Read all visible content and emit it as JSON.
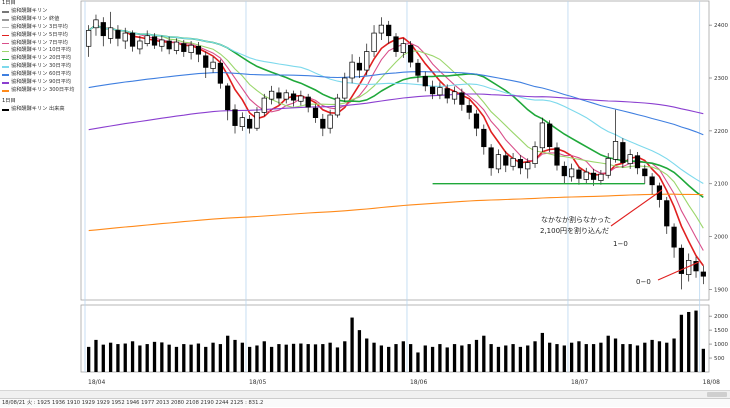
{
  "legend": {
    "price_panel_title": "1日目",
    "price_items": [
      {
        "label": "協和醗酵キリン",
        "color": "#777777"
      },
      {
        "label": "協和醗酵キリン 終値",
        "color": "#999999"
      },
      {
        "label": "協和醗酵キリン 3日平均",
        "color": "#bbbbbb"
      },
      {
        "label": "協和醗酵キリン 5日平均",
        "color": "#e02020"
      },
      {
        "label": "協和醗酵キリン 7日平均",
        "color": "#d94f8a"
      },
      {
        "label": "協和醗酵キリン 10日平均",
        "color": "#9bd66c"
      },
      {
        "label": "協和醗酵キリン 20日平均",
        "color": "#1fa83a"
      },
      {
        "label": "協和醗酵キリン 30日平均",
        "color": "#7dd9ec"
      },
      {
        "label": "協和醗酵キリン 60日平均",
        "color": "#3f7fe0"
      },
      {
        "label": "協和醗酵キリン 90日平均",
        "color": "#8b3fd0"
      },
      {
        "label": "協和醗酵キリン 300日平均",
        "color": "#ff8a1a"
      }
    ],
    "volume_panel_title": "1日目",
    "volume_items": [
      {
        "label": "協和醗酵キリン 出来高",
        "color": "#000000"
      }
    ]
  },
  "annotations": {
    "note_line1": "なかなか割らなかった",
    "note_line2": "2,100円を割り込んだ",
    "label_1_0": "1−0",
    "label_0_0": "0−0"
  },
  "status_bar": "18/08/21 火 : 1925 1936 1910 1929 1929 1952 1946 1977 2013 2080 2108 2190 2244 2125 : 831.2",
  "chart_data": {
    "type": "candlestick",
    "x_labels": [
      "18/04",
      "18/05",
      "18/06",
      "18/07",
      "18/08"
    ],
    "price_axis_ticks": [
      1900,
      2000,
      2100,
      2200,
      2300,
      2400
    ],
    "price_range": [
      1880,
      2440
    ],
    "volume_axis_ticks": [
      500,
      1000,
      1500,
      2000
    ],
    "volume_range": [
      0,
      2400
    ],
    "support_level": 2100,
    "candles": [
      {
        "o": 2360,
        "c": 2390,
        "h": 2400,
        "l": 2340
      },
      {
        "o": 2395,
        "c": 2410,
        "h": 2420,
        "l": 2380
      },
      {
        "o": 2405,
        "c": 2380,
        "h": 2415,
        "l": 2360
      },
      {
        "o": 2375,
        "c": 2395,
        "h": 2425,
        "l": 2365
      },
      {
        "o": 2390,
        "c": 2375,
        "h": 2400,
        "l": 2360
      },
      {
        "o": 2370,
        "c": 2385,
        "h": 2395,
        "l": 2355
      },
      {
        "o": 2385,
        "c": 2360,
        "h": 2390,
        "l": 2350
      },
      {
        "o": 2355,
        "c": 2370,
        "h": 2380,
        "l": 2345
      },
      {
        "o": 2365,
        "c": 2380,
        "h": 2390,
        "l": 2360
      },
      {
        "o": 2378,
        "c": 2362,
        "h": 2385,
        "l": 2355
      },
      {
        "o": 2360,
        "c": 2372,
        "h": 2380,
        "l": 2350
      },
      {
        "o": 2370,
        "c": 2355,
        "h": 2378,
        "l": 2345
      },
      {
        "o": 2352,
        "c": 2368,
        "h": 2375,
        "l": 2345
      },
      {
        "o": 2365,
        "c": 2350,
        "h": 2372,
        "l": 2340
      },
      {
        "o": 2348,
        "c": 2362,
        "h": 2370,
        "l": 2335
      },
      {
        "o": 2360,
        "c": 2345,
        "h": 2368,
        "l": 2330
      },
      {
        "o": 2342,
        "c": 2320,
        "h": 2350,
        "l": 2300
      },
      {
        "o": 2318,
        "c": 2330,
        "h": 2340,
        "l": 2310
      },
      {
        "o": 2328,
        "c": 2290,
        "h": 2335,
        "l": 2280
      },
      {
        "o": 2285,
        "c": 2240,
        "h": 2290,
        "l": 2220
      },
      {
        "o": 2240,
        "c": 2210,
        "h": 2250,
        "l": 2195
      },
      {
        "o": 2208,
        "c": 2225,
        "h": 2235,
        "l": 2200
      },
      {
        "o": 2222,
        "c": 2205,
        "h": 2230,
        "l": 2195
      },
      {
        "o": 2205,
        "c": 2235,
        "h": 2245,
        "l": 2200
      },
      {
        "o": 2235,
        "c": 2262,
        "h": 2270,
        "l": 2228
      },
      {
        "o": 2260,
        "c": 2275,
        "h": 2285,
        "l": 2250
      },
      {
        "o": 2272,
        "c": 2262,
        "h": 2282,
        "l": 2250
      },
      {
        "o": 2260,
        "c": 2272,
        "h": 2278,
        "l": 2252
      },
      {
        "o": 2270,
        "c": 2258,
        "h": 2276,
        "l": 2246
      },
      {
        "o": 2256,
        "c": 2266,
        "h": 2276,
        "l": 2248
      },
      {
        "o": 2264,
        "c": 2245,
        "h": 2270,
        "l": 2235
      },
      {
        "o": 2243,
        "c": 2225,
        "h": 2250,
        "l": 2215
      },
      {
        "o": 2222,
        "c": 2205,
        "h": 2232,
        "l": 2190
      },
      {
        "o": 2205,
        "c": 2230,
        "h": 2240,
        "l": 2195
      },
      {
        "o": 2230,
        "c": 2262,
        "h": 2270,
        "l": 2225
      },
      {
        "o": 2262,
        "c": 2300,
        "h": 2310,
        "l": 2255
      },
      {
        "o": 2300,
        "c": 2330,
        "h": 2345,
        "l": 2290
      },
      {
        "o": 2328,
        "c": 2315,
        "h": 2340,
        "l": 2300
      },
      {
        "o": 2315,
        "c": 2350,
        "h": 2365,
        "l": 2305
      },
      {
        "o": 2350,
        "c": 2385,
        "h": 2400,
        "l": 2340
      },
      {
        "o": 2385,
        "c": 2400,
        "h": 2415,
        "l": 2372
      },
      {
        "o": 2400,
        "c": 2380,
        "h": 2408,
        "l": 2365
      },
      {
        "o": 2378,
        "c": 2350,
        "h": 2385,
        "l": 2340
      },
      {
        "o": 2348,
        "c": 2365,
        "h": 2375,
        "l": 2338
      },
      {
        "o": 2362,
        "c": 2330,
        "h": 2370,
        "l": 2320
      },
      {
        "o": 2328,
        "c": 2305,
        "h": 2336,
        "l": 2292
      },
      {
        "o": 2303,
        "c": 2285,
        "h": 2312,
        "l": 2275
      },
      {
        "o": 2283,
        "c": 2270,
        "h": 2295,
        "l": 2260
      },
      {
        "o": 2268,
        "c": 2282,
        "h": 2292,
        "l": 2260
      },
      {
        "o": 2280,
        "c": 2262,
        "h": 2288,
        "l": 2252
      },
      {
        "o": 2260,
        "c": 2274,
        "h": 2284,
        "l": 2250
      },
      {
        "o": 2272,
        "c": 2250,
        "h": 2280,
        "l": 2238
      },
      {
        "o": 2248,
        "c": 2235,
        "h": 2258,
        "l": 2222
      },
      {
        "o": 2232,
        "c": 2205,
        "h": 2240,
        "l": 2190
      },
      {
        "o": 2203,
        "c": 2170,
        "h": 2212,
        "l": 2155
      },
      {
        "o": 2168,
        "c": 2130,
        "h": 2175,
        "l": 2115
      },
      {
        "o": 2128,
        "c": 2155,
        "h": 2165,
        "l": 2120
      },
      {
        "o": 2153,
        "c": 2135,
        "h": 2162,
        "l": 2122
      },
      {
        "o": 2133,
        "c": 2148,
        "h": 2158,
        "l": 2125
      },
      {
        "o": 2146,
        "c": 2130,
        "h": 2154,
        "l": 2118
      },
      {
        "o": 2128,
        "c": 2140,
        "h": 2148,
        "l": 2110
      },
      {
        "o": 2138,
        "c": 2170,
        "h": 2180,
        "l": 2130
      },
      {
        "o": 2168,
        "c": 2215,
        "h": 2225,
        "l": 2160
      },
      {
        "o": 2213,
        "c": 2170,
        "h": 2220,
        "l": 2160
      },
      {
        "o": 2168,
        "c": 2135,
        "h": 2178,
        "l": 2125
      },
      {
        "o": 2133,
        "c": 2115,
        "h": 2142,
        "l": 2100
      },
      {
        "o": 2113,
        "c": 2128,
        "h": 2138,
        "l": 2104
      },
      {
        "o": 2126,
        "c": 2110,
        "h": 2132,
        "l": 2098
      },
      {
        "o": 2108,
        "c": 2122,
        "h": 2130,
        "l": 2100
      },
      {
        "o": 2120,
        "c": 2108,
        "h": 2128,
        "l": 2096
      },
      {
        "o": 2106,
        "c": 2118,
        "h": 2126,
        "l": 2098
      },
      {
        "o": 2116,
        "c": 2148,
        "h": 2158,
        "l": 2110
      },
      {
        "o": 2146,
        "c": 2180,
        "h": 2240,
        "l": 2140
      },
      {
        "o": 2178,
        "c": 2140,
        "h": 2186,
        "l": 2130
      },
      {
        "o": 2138,
        "c": 2155,
        "h": 2165,
        "l": 2128
      },
      {
        "o": 2153,
        "c": 2130,
        "h": 2160,
        "l": 2118
      },
      {
        "o": 2128,
        "c": 2115,
        "h": 2136,
        "l": 2100
      },
      {
        "o": 2113,
        "c": 2098,
        "h": 2120,
        "l": 2080
      },
      {
        "o": 2096,
        "c": 2070,
        "h": 2102,
        "l": 2055
      },
      {
        "o": 2068,
        "c": 2020,
        "h": 2075,
        "l": 2005
      },
      {
        "o": 2018,
        "c": 1980,
        "h": 2025,
        "l": 1960
      },
      {
        "o": 1978,
        "c": 1930,
        "h": 1985,
        "l": 1900
      },
      {
        "o": 1928,
        "c": 1955,
        "h": 1968,
        "l": 1915
      },
      {
        "o": 1953,
        "c": 1935,
        "h": 1962,
        "l": 1922
      },
      {
        "o": 1933,
        "c": 1925,
        "h": 1945,
        "l": 1910
      }
    ],
    "volume": [
      900,
      1150,
      980,
      1050,
      1000,
      1020,
      1100,
      950,
      1000,
      1080,
      1060,
      980,
      900,
      1000,
      980,
      1020,
      900,
      1050,
      1000,
      1300,
      1150,
      1050,
      900,
      950,
      1100,
      900,
      1000,
      980,
      1010,
      1020,
      1000,
      990,
      1000,
      1050,
      880,
      1100,
      1950,
      1500,
      1200,
      1050,
      950,
      900,
      1000,
      1100,
      1000,
      700,
      950,
      900,
      1000,
      880,
      1000,
      950,
      1000,
      1150,
      1300,
      1000,
      900,
      950,
      1000,
      900,
      950,
      1100,
      1400,
      1050,
      1000,
      950,
      1050,
      1100,
      1000,
      1000,
      1050,
      1300,
      1200,
      1000,
      1000,
      950,
      1050,
      1150,
      1100,
      1050,
      1200,
      2050,
      2150,
      2200,
      831
    ],
    "moving_averages": [
      {
        "period": 5,
        "color": "#e02020"
      },
      {
        "period": 7,
        "color": "#d94f8a"
      },
      {
        "period": 10,
        "color": "#9bd66c"
      },
      {
        "period": 20,
        "color": "#1fa83a"
      },
      {
        "period": 30,
        "color": "#7dd9ec"
      },
      {
        "period": 60,
        "color": "#3f7fe0"
      },
      {
        "period": 90,
        "color": "#8b3fd0"
      },
      {
        "period": 300,
        "color": "#ff8a1a"
      }
    ]
  }
}
